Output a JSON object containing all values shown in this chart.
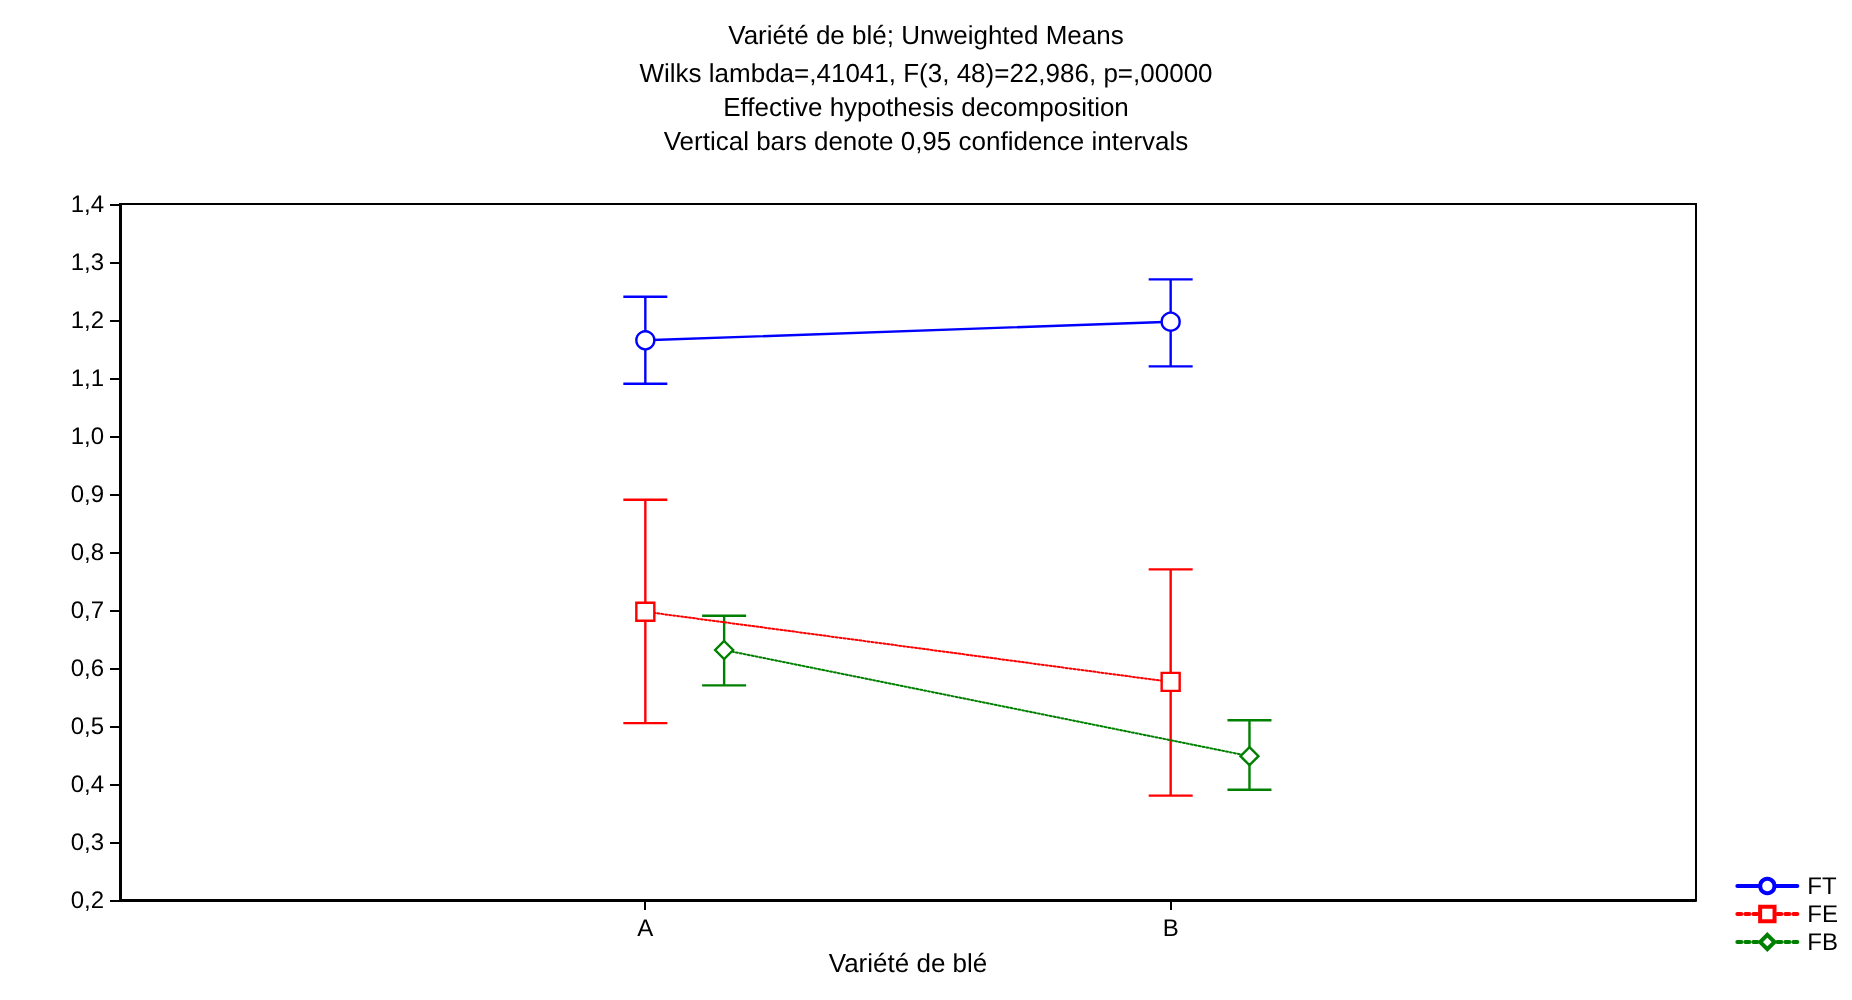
{
  "chart_data": {
    "type": "line",
    "title": "Variété de blé; Unweighted Means",
    "subtitle": "Wilks lambda=,41041, F(3, 48)=22,986, p=,00000\nEffective hypothesis decomposition\nVertical bars denote 0,95 confidence intervals",
    "xlabel": "Variété de blé",
    "categories": [
      "A",
      "B"
    ],
    "series": [
      {
        "name": "FT",
        "color": "#0000ff",
        "values": [
          1.165,
          1.197
        ],
        "errors": [
          [
            1.09,
            1.24
          ],
          [
            1.12,
            1.27
          ]
        ],
        "marker": "circle",
        "line_style": "solid"
      },
      {
        "name": "FE",
        "color": "#ff0000",
        "values": [
          0.697,
          0.576
        ],
        "errors": [
          [
            0.505,
            0.89
          ],
          [
            0.38,
            0.77
          ]
        ],
        "marker": "square",
        "line_style": "dotted"
      },
      {
        "name": "FB",
        "color": "#008000",
        "values": [
          0.631,
          0.448
        ],
        "errors": [
          [
            0.57,
            0.69
          ],
          [
            0.39,
            0.51
          ]
        ],
        "marker": "diamond",
        "line_style": "dotted"
      }
    ],
    "ylim": [
      0.2,
      1.4
    ],
    "yticks": [
      {
        "value": 0.2,
        "label": "0,2"
      },
      {
        "value": 0.3,
        "label": "0,3"
      },
      {
        "value": 0.4,
        "label": "0,4"
      },
      {
        "value": 0.5,
        "label": "0,5"
      },
      {
        "value": 0.6,
        "label": "0,6"
      },
      {
        "value": 0.7,
        "label": "0,7"
      },
      {
        "value": 0.8,
        "label": "0,8"
      },
      {
        "value": 0.9,
        "label": "0,9"
      },
      {
        "value": 1.0,
        "label": "1,0"
      },
      {
        "value": 1.1,
        "label": "1,1"
      },
      {
        "value": 1.2,
        "label": "1,2"
      },
      {
        "value": 1.3,
        "label": "1,3"
      },
      {
        "value": 1.4,
        "label": "1,4"
      }
    ],
    "grid": false,
    "legend": "bottom right"
  }
}
